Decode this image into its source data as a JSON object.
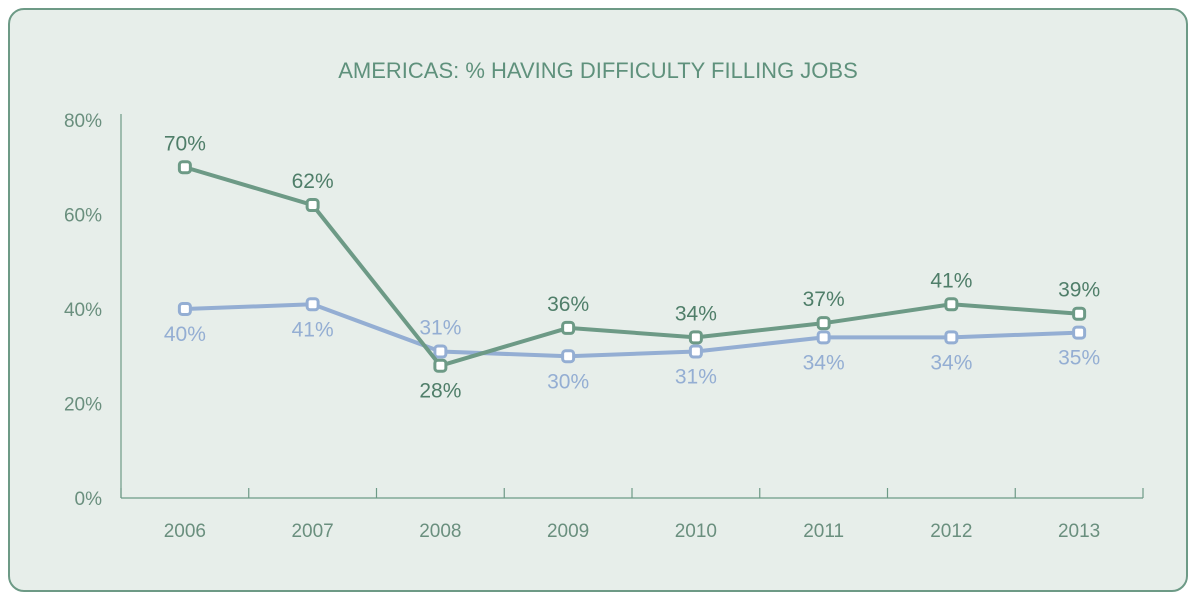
{
  "chart_data": {
    "type": "line",
    "title": "AMERICAS: % HAVING DIFFICULTY FILLING JOBS",
    "xlabel": "",
    "ylabel": "",
    "categories": [
      "2006",
      "2007",
      "2008",
      "2009",
      "2010",
      "2011",
      "2012",
      "2013"
    ],
    "ylim": [
      0,
      80
    ],
    "yticks": [
      0,
      20,
      40,
      60,
      80
    ],
    "ytick_labels": [
      "0%",
      "20%",
      "40%",
      "60%",
      "80%"
    ],
    "grid": false,
    "legend": "none",
    "series": [
      {
        "key": "green",
        "color": "#6d9a86",
        "values": [
          70,
          62,
          28,
          36,
          34,
          37,
          41,
          39
        ],
        "labels": [
          "70%",
          "62%",
          "28%",
          "36%",
          "34%",
          "37%",
          "41%",
          "39%"
        ]
      },
      {
        "key": "blue",
        "color": "#94aed3",
        "values": [
          40,
          41,
          31,
          30,
          31,
          34,
          34,
          35
        ],
        "labels": [
          "40%",
          "41%",
          "31%",
          "30%",
          "31%",
          "34%",
          "34%",
          "35%"
        ]
      }
    ]
  }
}
